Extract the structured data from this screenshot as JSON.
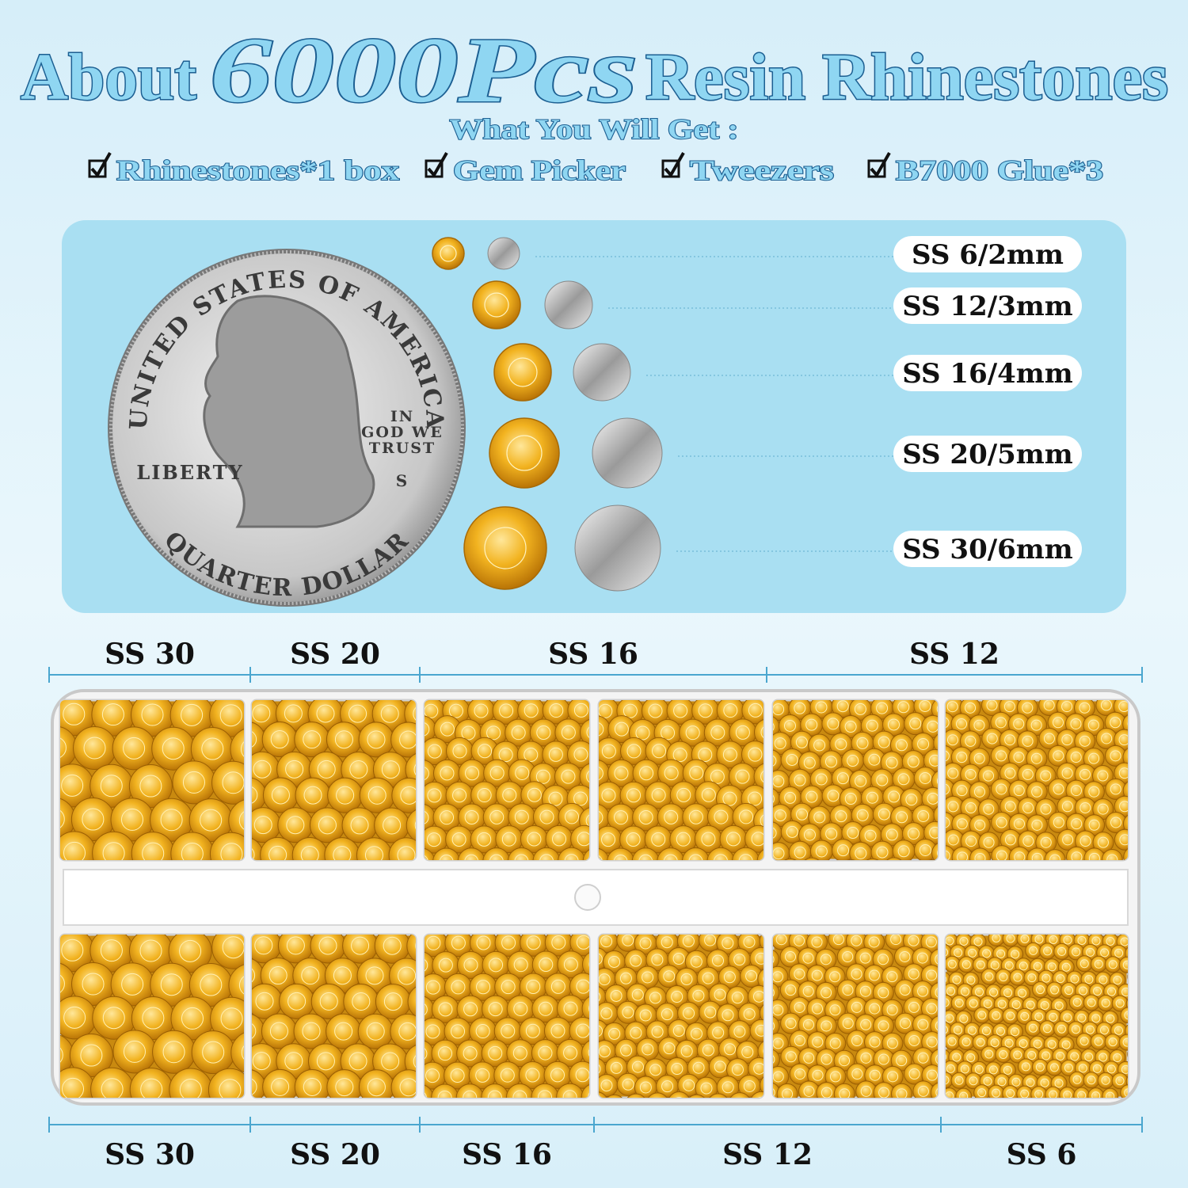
{
  "header": {
    "title_parts": [
      "About",
      "6000Pcs",
      "Resin Rhinestones"
    ],
    "subtitle": "What You Will Get :",
    "items": [
      "Rhinestones*1 box",
      "Gem Picker",
      "Tweezers",
      "B7000 Glue*3"
    ]
  },
  "coin": {
    "top_text": "UNITED STATES OF AMERICA",
    "liberty": "LIBERTY",
    "motto": [
      "IN",
      "GOD WE",
      "TRUST"
    ],
    "mint_mark": "S",
    "bottom_text": "QUARTER DOLLAR"
  },
  "size_chart": [
    "SS 6/2mm",
    "SS 12/3mm",
    "SS 16/4mm",
    "SS 20/5mm",
    "SS 30/6mm"
  ],
  "tray": {
    "top_labels": [
      "SS 30",
      "SS 20",
      "SS 16",
      "SS 12"
    ],
    "bottom_labels": [
      "SS 30",
      "SS 20",
      "SS 16",
      "SS 12",
      "SS 6"
    ]
  }
}
